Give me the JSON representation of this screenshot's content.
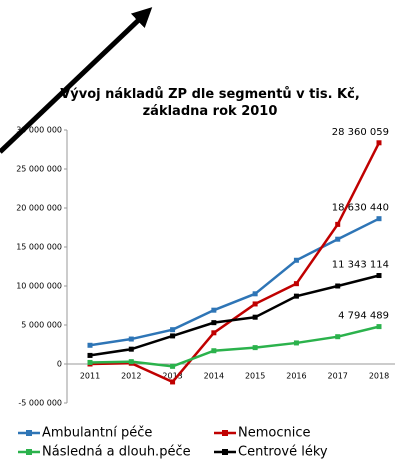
{
  "chart_data": {
    "type": "line",
    "title": "Vývoj nákladů ZP dle segmentů v tis. Kč, základna rok 2010",
    "categories": [
      "2011",
      "2012",
      "2013",
      "2014",
      "2015",
      "2016",
      "2017",
      "2018"
    ],
    "ylim": [
      -5000000,
      30000000
    ],
    "yticks": [
      {
        "value": -5000000,
        "label": "-5 000 000"
      },
      0,
      {
        "value": 5000000,
        "label": "5 000 000"
      },
      {
        "value": 10000000,
        "label": "10 000 000"
      },
      {
        "value": 15000000,
        "label": "15 000 000"
      },
      {
        "value": 20000000,
        "label": "20 000 000"
      },
      {
        "value": 25000000,
        "label": "25 000 000"
      },
      {
        "value": 30000000,
        "label": "30 000 000"
      }
    ],
    "series": [
      {
        "name": "Ambulantní péče",
        "color": "#2e75b6",
        "values": [
          2400000,
          3200000,
          4400000,
          6900000,
          9000000,
          13300000,
          16000000,
          18630440
        ],
        "value_labels": [
          null,
          null,
          null,
          null,
          null,
          null,
          null,
          "18 630 440"
        ]
      },
      {
        "name": "Nemocnice",
        "color": "#c00000",
        "values": [
          0,
          100000,
          -2300000,
          4000000,
          7700000,
          10300000,
          17900000,
          28360059
        ],
        "value_labels": [
          null,
          null,
          null,
          null,
          null,
          null,
          null,
          "28 360 059"
        ]
      },
      {
        "name": "Následná a dlouh.péče",
        "color": "#2bb24c",
        "values": [
          200000,
          300000,
          -300000,
          1700000,
          2100000,
          2700000,
          3500000,
          4794489
        ],
        "value_labels": [
          null,
          null,
          null,
          null,
          null,
          null,
          null,
          "4 794 489"
        ]
      },
      {
        "name": "Centrové léky",
        "color": "#000000",
        "values": [
          1100000,
          1900000,
          3600000,
          5300000,
          6000000,
          8700000,
          10000000,
          11343114
        ],
        "value_labels": [
          null,
          null,
          null,
          null,
          null,
          null,
          null,
          "11 343 114"
        ]
      }
    ]
  }
}
